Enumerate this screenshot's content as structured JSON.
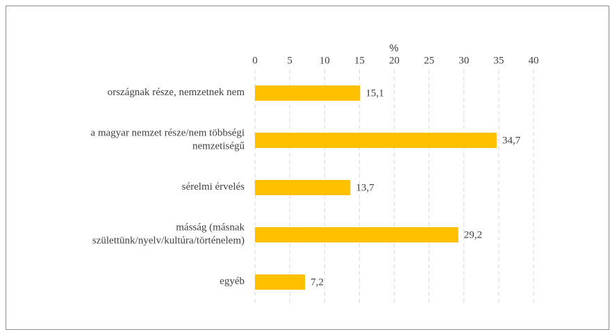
{
  "chart_data": {
    "type": "bar",
    "orientation": "horizontal",
    "xlabel": "%",
    "categories": [
      "országnak része, nemzetnek nem",
      "a magyar nemzet része/nem többségi nemzetiségű",
      "sérelmi érvelés",
      "másság (másnak születtünk/nyelv/kultúra/történelem)",
      "egyéb"
    ],
    "values": [
      15.1,
      34.7,
      13.7,
      29.2,
      7.2
    ],
    "value_labels": [
      "15,1",
      "34,7",
      "13,7",
      "29,2",
      "7,2"
    ],
    "color": "#ffc000",
    "xlim": [
      0,
      40
    ],
    "xticks": [
      0,
      5,
      10,
      15,
      20,
      25,
      30,
      35,
      40
    ],
    "grid": true
  }
}
